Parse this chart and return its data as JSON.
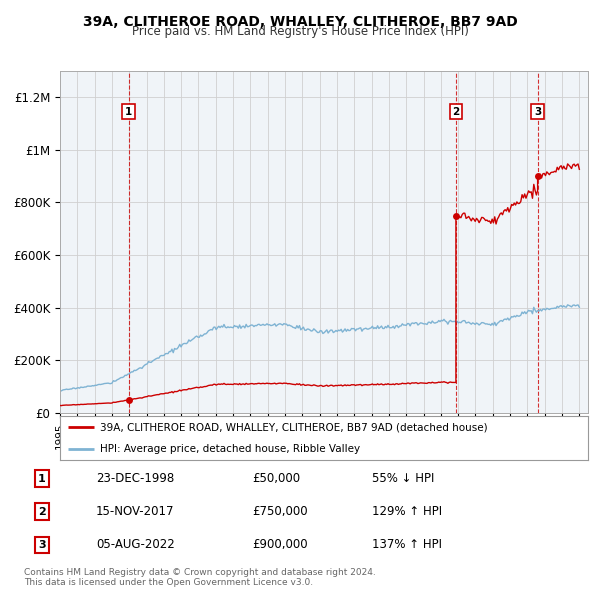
{
  "title": "39A, CLITHEROE ROAD, WHALLEY, CLITHEROE, BB7 9AD",
  "subtitle": "Price paid vs. HM Land Registry's House Price Index (HPI)",
  "legend_property": "39A, CLITHEROE ROAD, WHALLEY, CLITHEROE, BB7 9AD (detached house)",
  "legend_hpi": "HPI: Average price, detached house, Ribble Valley",
  "property_color": "#cc0000",
  "hpi_color": "#7fb3d3",
  "transactions": [
    {
      "num": 1,
      "date": "23-DEC-1998",
      "price": "£50,000",
      "pct": "55%",
      "dir": "↓"
    },
    {
      "num": 2,
      "date": "15-NOV-2017",
      "price": "£750,000",
      "pct": "129%",
      "dir": "↑"
    },
    {
      "num": 3,
      "date": "05-AUG-2022",
      "price": "£900,000",
      "pct": "137%",
      "dir": "↑"
    }
  ],
  "transaction_years": [
    1998.97,
    2017.87,
    2022.59
  ],
  "transaction_prices": [
    50000,
    750000,
    900000
  ],
  "ylim": [
    0,
    1300000
  ],
  "yticks": [
    0,
    200000,
    400000,
    600000,
    800000,
    1000000,
    1200000
  ],
  "ytick_labels": [
    "£0",
    "£200K",
    "£400K",
    "£600K",
    "£800K",
    "£1M",
    "£1.2M"
  ],
  "xmin": 1995,
  "xmax": 2025,
  "footnote1": "Contains HM Land Registry data © Crown copyright and database right 2024.",
  "footnote2": "This data is licensed under the Open Government Licence v3.0.",
  "background_color": "#ffffff",
  "grid_color": "#d0d0d0",
  "plot_bg": "#f0f4f8"
}
